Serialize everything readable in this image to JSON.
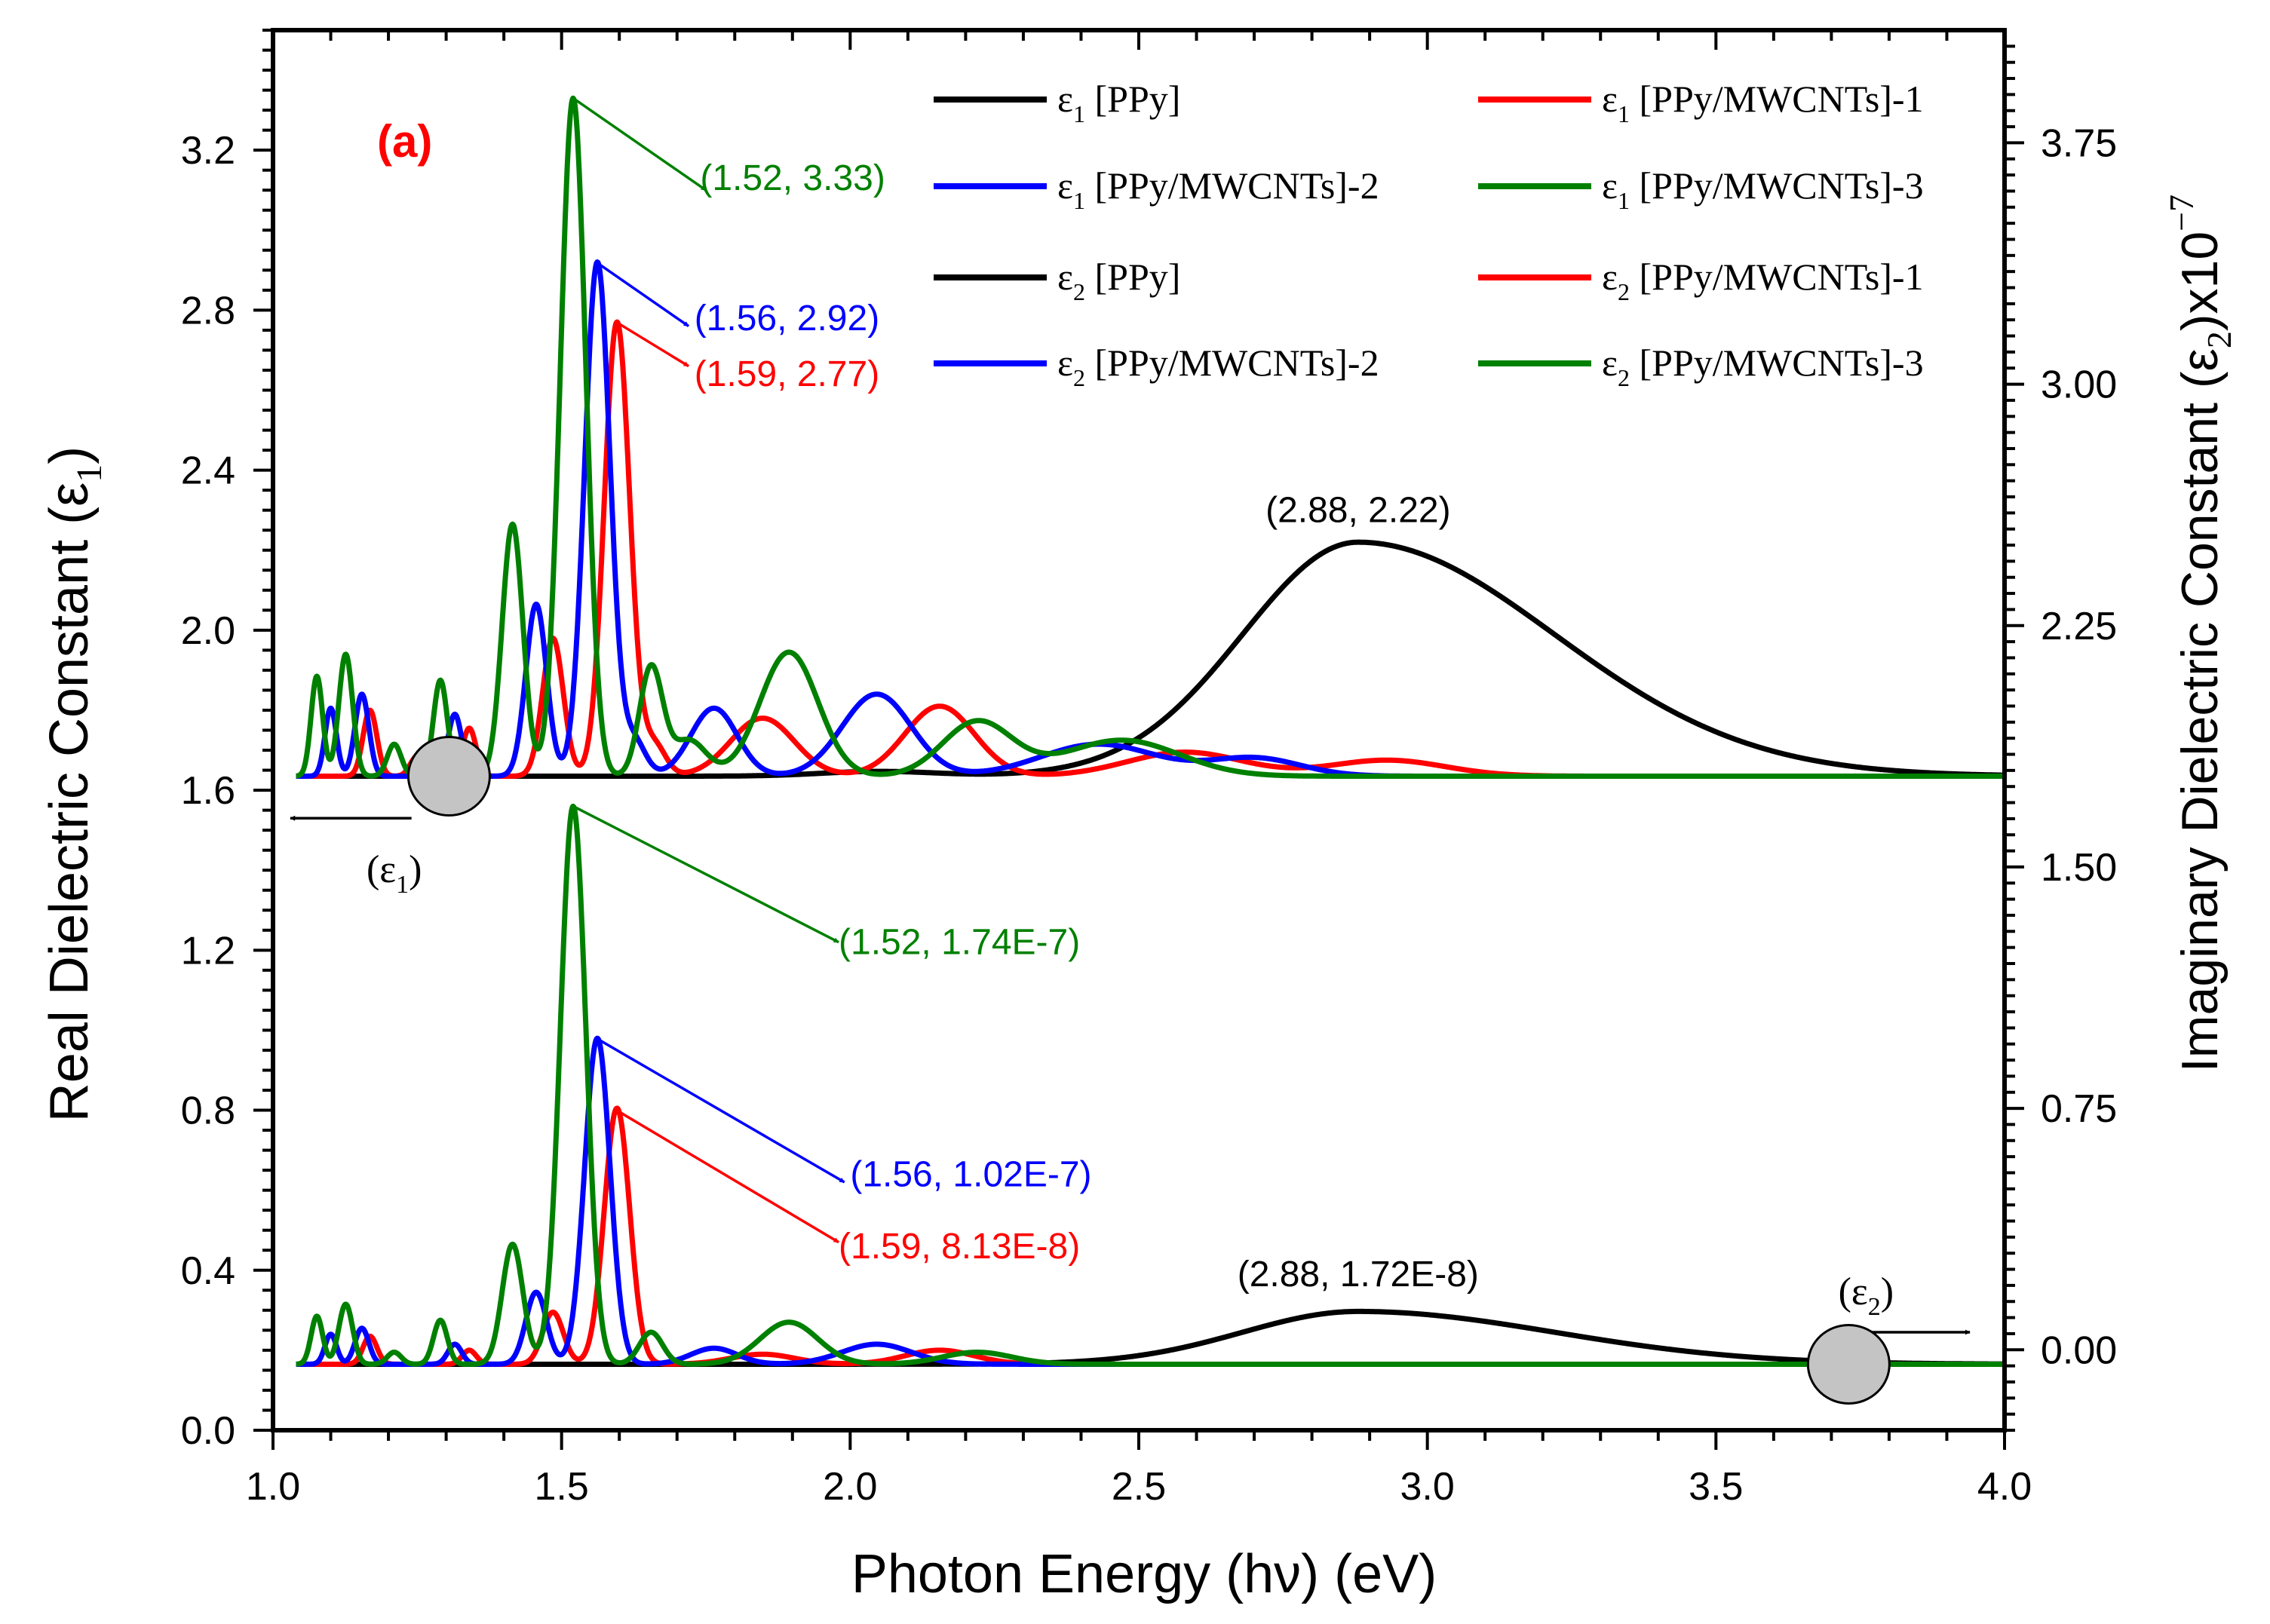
{
  "chart_data": {
    "type": "line",
    "panel_label": "(a)",
    "xlabel": "Photon Energy (hν) (eV)",
    "ylabel_left": {
      "main": "Real Dielectric Constant (ε",
      "sub": "1",
      "close": ")"
    },
    "ylabel_right": {
      "main": "Imaginary Dielectric Constant (ε",
      "sub": "2",
      "mid": ")x10",
      "sup": "−7"
    },
    "xlim": [
      1.0,
      4.0
    ],
    "ylim_left": [
      0.0,
      3.5
    ],
    "ylim_right": [
      -0.25,
      4.1
    ],
    "x_ticks": [
      1.0,
      1.5,
      2.0,
      2.5,
      3.0,
      3.5,
      4.0
    ],
    "x_tick_labels": [
      "1.0",
      "1.5",
      "2.0",
      "2.5",
      "3.0",
      "3.5",
      "4.0"
    ],
    "y_left_ticks": [
      0.0,
      0.4,
      0.8,
      1.2,
      1.6,
      2.0,
      2.4,
      2.8,
      3.2
    ],
    "y_left_tick_labels": [
      "0.0",
      "0.4",
      "0.8",
      "1.2",
      "1.6",
      "2.0",
      "2.4",
      "2.8",
      "3.2"
    ],
    "y_right_ticks": [
      0.0,
      0.75,
      1.5,
      2.25,
      3.0,
      3.75
    ],
    "y_right_tick_labels": [
      "0.00",
      "0.75",
      "1.50",
      "2.25",
      "3.00",
      "3.75"
    ],
    "colors": {
      "ppy": "#000000",
      "mw1": "#ff0000",
      "mw2": "#0000ff",
      "mw3": "#008000"
    },
    "legend": [
      {
        "key": "e1_ppy",
        "eps": "ε",
        "sub": "1",
        "label": " [PPy]",
        "color": "#000000"
      },
      {
        "key": "e1_mw1",
        "eps": "ε",
        "sub": "1",
        "label": " [PPy/MWCNTs]-1",
        "color": "#ff0000"
      },
      {
        "key": "e1_mw2",
        "eps": "ε",
        "sub": "1",
        "label": " [PPy/MWCNTs]-2",
        "color": "#0000ff"
      },
      {
        "key": "e1_mw3",
        "eps": "ε",
        "sub": "1",
        "label": " [PPy/MWCNTs]-3",
        "color": "#008000"
      },
      {
        "key": "e2_ppy",
        "eps": "ε",
        "sub": "2",
        "label": " [PPy]",
        "color": "#000000"
      },
      {
        "key": "e2_mw1",
        "eps": "ε",
        "sub": "2",
        "label": " [PPy/MWCNTs]-1",
        "color": "#ff0000"
      },
      {
        "key": "e2_mw2",
        "eps": "ε",
        "sub": "2",
        "label": " [PPy/MWCNTs]-2",
        "color": "#0000ff"
      },
      {
        "key": "e2_mw3",
        "eps": "ε",
        "sub": "2",
        "label": " [PPy/MWCNTs]-3",
        "color": "#008000"
      }
    ],
    "baselines": {
      "eps1": 1.635,
      "eps2_left_units": 0.165
    },
    "series": [
      {
        "name": "ε1 [PPy]",
        "color": "#000000",
        "group": "eps1",
        "peaks": [
          [
            2.88,
            0.585,
            0.2,
            0.34
          ],
          [
            2.05,
            0.012,
            0.1,
            0.1
          ]
        ]
      },
      {
        "name": "ε1 [PPy/MWCNTs]-1",
        "color": "#ff0000",
        "group": "eps1",
        "peaks": [
          [
            1.596,
            1.135,
            0.022,
            0.022
          ],
          [
            1.485,
            0.345,
            0.018,
            0.018
          ],
          [
            1.848,
            0.145,
            0.055,
            0.055
          ],
          [
            2.155,
            0.175,
            0.06,
            0.06
          ],
          [
            1.66,
            0.08,
            0.02,
            0.02
          ],
          [
            1.34,
            0.12,
            0.012,
            0.012
          ],
          [
            1.168,
            0.165,
            0.012,
            0.012
          ],
          [
            2.58,
            0.06,
            0.1,
            0.1
          ],
          [
            2.93,
            0.04,
            0.1,
            0.1
          ],
          [
            1.25,
            0.05,
            0.012,
            0.012
          ]
        ]
      },
      {
        "name": "ε1 [PPy/MWCNTs]-2",
        "color": "#0000ff",
        "group": "eps1",
        "peaks": [
          [
            1.562,
            1.285,
            0.022,
            0.022
          ],
          [
            1.456,
            0.43,
            0.018,
            0.018
          ],
          [
            1.764,
            0.17,
            0.04,
            0.04
          ],
          [
            2.046,
            0.205,
            0.06,
            0.06
          ],
          [
            2.43,
            0.08,
            0.1,
            0.1
          ],
          [
            2.7,
            0.045,
            0.08,
            0.08
          ],
          [
            1.315,
            0.155,
            0.012,
            0.012
          ],
          [
            1.154,
            0.205,
            0.012,
            0.012
          ],
          [
            1.1,
            0.17,
            0.01,
            0.01
          ],
          [
            1.625,
            0.09,
            0.02,
            0.02
          ]
        ]
      },
      {
        "name": "ε1 [PPy/MWCNTs]-3",
        "color": "#008000",
        "group": "eps1",
        "peaks": [
          [
            1.52,
            1.695,
            0.022,
            0.022
          ],
          [
            1.415,
            0.63,
            0.018,
            0.018
          ],
          [
            1.894,
            0.31,
            0.05,
            0.05
          ],
          [
            2.22,
            0.135,
            0.06,
            0.06
          ],
          [
            1.655,
            0.27,
            0.02,
            0.02
          ],
          [
            1.29,
            0.24,
            0.012,
            0.012
          ],
          [
            1.126,
            0.305,
            0.012,
            0.012
          ],
          [
            1.076,
            0.25,
            0.01,
            0.01
          ],
          [
            2.47,
            0.09,
            0.1,
            0.1
          ],
          [
            1.72,
            0.09,
            0.03,
            0.03
          ],
          [
            1.21,
            0.08,
            0.012,
            0.012
          ]
        ]
      },
      {
        "name": "ε2 [PPy]",
        "color": "#000000",
        "group": "eps2",
        "peaks": [
          [
            2.88,
            0.132,
            0.2,
            0.34
          ]
        ]
      },
      {
        "name": "ε2 [PPy/MWCNTs]-1",
        "color": "#ff0000",
        "group": "eps2",
        "peaks": [
          [
            1.596,
            0.64,
            0.022,
            0.022
          ],
          [
            1.485,
            0.13,
            0.018,
            0.018
          ],
          [
            1.848,
            0.025,
            0.055,
            0.055
          ],
          [
            2.155,
            0.035,
            0.06,
            0.06
          ],
          [
            1.168,
            0.07,
            0.012,
            0.012
          ],
          [
            1.34,
            0.035,
            0.012,
            0.012
          ]
        ]
      },
      {
        "name": "ε2 [PPy/MWCNTs]-2",
        "color": "#0000ff",
        "group": "eps2",
        "peaks": [
          [
            1.562,
            0.815,
            0.022,
            0.022
          ],
          [
            1.456,
            0.18,
            0.018,
            0.018
          ],
          [
            1.764,
            0.04,
            0.04,
            0.04
          ],
          [
            2.046,
            0.05,
            0.06,
            0.06
          ],
          [
            1.154,
            0.09,
            0.012,
            0.012
          ],
          [
            1.1,
            0.075,
            0.01,
            0.01
          ],
          [
            1.315,
            0.05,
            0.012,
            0.012
          ]
        ]
      },
      {
        "name": "ε2 [PPy/MWCNTs]-3",
        "color": "#008000",
        "group": "eps2",
        "peaks": [
          [
            1.52,
            1.395,
            0.022,
            0.022
          ],
          [
            1.415,
            0.3,
            0.018,
            0.018
          ],
          [
            1.894,
            0.105,
            0.05,
            0.05
          ],
          [
            1.655,
            0.08,
            0.02,
            0.02
          ],
          [
            1.29,
            0.11,
            0.012,
            0.012
          ],
          [
            1.126,
            0.15,
            0.012,
            0.012
          ],
          [
            1.076,
            0.12,
            0.01,
            0.01
          ],
          [
            2.22,
            0.03,
            0.06,
            0.06
          ],
          [
            1.21,
            0.03,
            0.012,
            0.012
          ]
        ]
      }
    ],
    "annotations": [
      {
        "text": "(1.52, 3.33)",
        "color": "#008000",
        "px": 1.52,
        "py": 3.33,
        "tx": 1.75,
        "ty": 3.1,
        "lx": 1.74,
        "ly": 3.1,
        "anchor": "start"
      },
      {
        "text": "(1.56, 2.92)",
        "color": "#0000ff",
        "px": 1.56,
        "py": 2.92,
        "tx": 1.72,
        "ty": 2.76,
        "lx": 1.73,
        "ly": 2.75,
        "anchor": "start"
      },
      {
        "text": "(1.59, 2.77)",
        "color": "#ff0000",
        "px": 1.595,
        "py": 2.77,
        "tx": 1.72,
        "ty": 2.66,
        "lx": 1.73,
        "ly": 2.61,
        "anchor": "start"
      },
      {
        "text": "(2.88, 2.22)",
        "color": "#000000",
        "px": null,
        "py": null,
        "tx": null,
        "ty": null,
        "lx": 2.88,
        "ly": 2.27,
        "anchor": "middle"
      },
      {
        "text": "(1.52, 1.74E-7)",
        "color": "#008000",
        "px": 1.52,
        "py": 1.56,
        "tx": 1.98,
        "ty": 1.22,
        "lx": 1.98,
        "ly": 1.19,
        "anchor": "start"
      },
      {
        "text": "(1.56, 1.02E-7)",
        "color": "#0000ff",
        "px": 1.56,
        "py": 0.98,
        "tx": 1.99,
        "ty": 0.62,
        "lx": 2.0,
        "ly": 0.61,
        "anchor": "start"
      },
      {
        "text": "(1.59, 8.13E-8)",
        "color": "#ff0000",
        "px": 1.595,
        "py": 0.8,
        "tx": 1.98,
        "ty": 0.47,
        "lx": 1.98,
        "ly": 0.43,
        "anchor": "start"
      },
      {
        "text": "(2.88, 1.72E-8)",
        "color": "#000000",
        "px": null,
        "py": null,
        "tx": null,
        "ty": null,
        "lx": 2.88,
        "ly": 0.36,
        "anchor": "middle"
      }
    ],
    "axis_markers": [
      {
        "eps": "(ε",
        "sub": "1",
        "close": ")",
        "cx": 1.305,
        "cy": 1.635,
        "ax1": 1.24,
        "ax2": 1.03,
        "ay": 1.53,
        "lx": 1.21,
        "ly": 1.37,
        "dir": "left"
      },
      {
        "eps": "(ε",
        "sub": "2",
        "close": ")",
        "cx": 3.73,
        "cy": 0.165,
        "ax1": 3.74,
        "ax2": 3.94,
        "ay": 0.245,
        "lx": 3.76,
        "ly": 0.315,
        "dir": "right"
      }
    ]
  }
}
